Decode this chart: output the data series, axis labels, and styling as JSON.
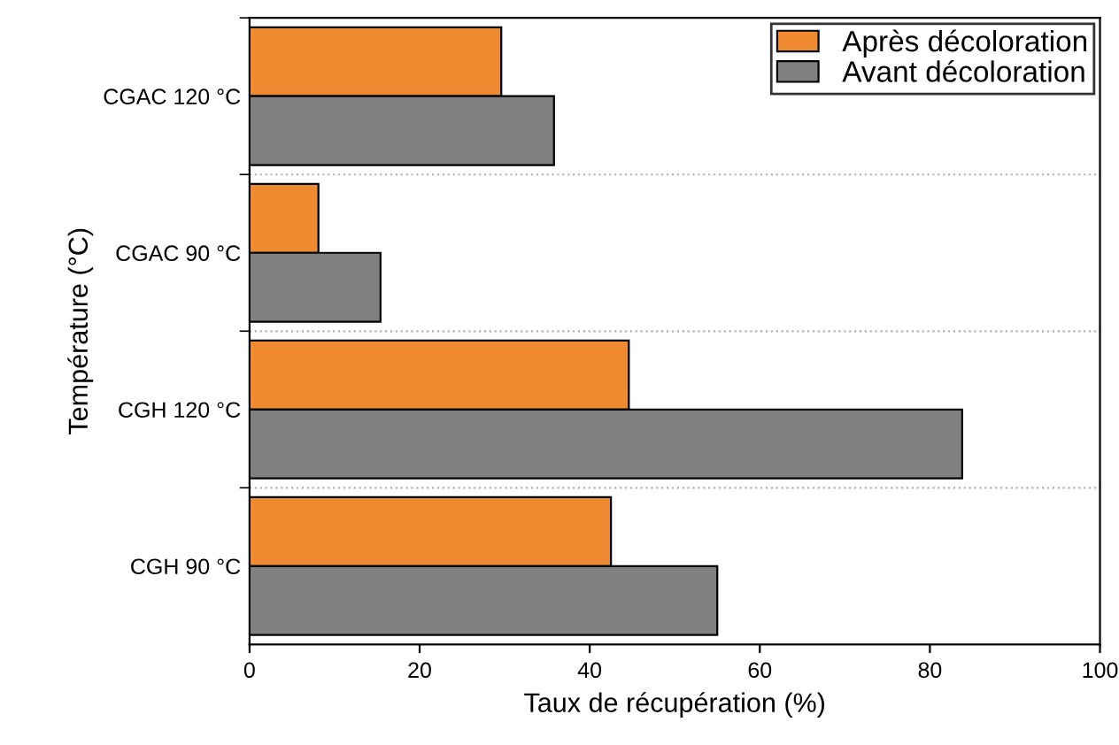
{
  "chart_data": {
    "type": "bar",
    "orientation": "horizontal",
    "xlabel": "Taux de récupération (%)",
    "ylabel": "Température (°C)",
    "categories": [
      "CGAC 120 °C",
      "CGAC 90 °C",
      "CGH 120 °C",
      "CGH 90 °C"
    ],
    "series": [
      {
        "name": "Après décoloration",
        "color": "#f08a30",
        "values": [
          29.6,
          8.1,
          44.6,
          42.5
        ]
      },
      {
        "name": "Avant décoloration",
        "color": "#808080",
        "values": [
          35.8,
          15.4,
          83.8,
          55.0
        ]
      }
    ],
    "xlim": [
      0,
      100
    ],
    "xticks": [
      0,
      20,
      40,
      60,
      80,
      100
    ],
    "grid": "y",
    "legend": "top right"
  }
}
